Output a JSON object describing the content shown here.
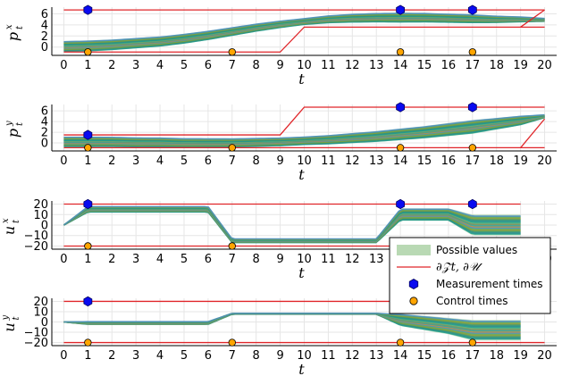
{
  "chart_data": [
    {
      "type": "line",
      "ylabel": {
        "base": "p",
        "sup": "x",
        "sub": "t"
      },
      "xlabel": "t",
      "xlim": [
        -0.5,
        20.5
      ],
      "ylim": [
        -1.5,
        7.2
      ],
      "xticks": [
        "0",
        "1",
        "2",
        "3",
        "4",
        "5",
        "6",
        "7",
        "8",
        "9",
        "10",
        "11",
        "12",
        "13",
        "14",
        "15",
        "16",
        "17",
        "18",
        "19",
        "20"
      ],
      "yticks": [
        0,
        2,
        4,
        6
      ],
      "bounds_upper": {
        "x": [
          0,
          1,
          20
        ],
        "y": [
          6.7,
          6.7,
          6.7
        ]
      },
      "bounds_lower": {
        "x": [
          0,
          9,
          10,
          20
        ],
        "y": [
          -0.9,
          -0.9,
          3.6,
          3.6
        ]
      },
      "bound_right_edge": {
        "x": [
          19,
          20
        ],
        "y": [
          3.6,
          6.7
        ]
      },
      "band_center": {
        "x": [
          0,
          1,
          2,
          3,
          4,
          5,
          6,
          7,
          8,
          9,
          10,
          11,
          12,
          13,
          14,
          15,
          16,
          17,
          18,
          19,
          20
        ],
        "y": [
          0.1,
          0.2,
          0.4,
          0.7,
          1.0,
          1.5,
          2.1,
          2.8,
          3.5,
          4.1,
          4.6,
          5.0,
          5.2,
          5.3,
          5.3,
          5.3,
          5.2,
          5.1,
          5.0,
          5.0,
          4.9
        ]
      },
      "band_halfwidth": {
        "x": [
          0,
          1,
          5,
          10,
          12,
          14,
          17,
          19,
          20
        ],
        "y": [
          1.0,
          1.0,
          0.9,
          0.6,
          0.8,
          0.9,
          0.8,
          0.5,
          0.3
        ]
      },
      "measurement_times": [
        1,
        14,
        17
      ],
      "control_times": [
        1,
        7,
        14,
        17
      ]
    },
    {
      "type": "line",
      "ylabel": {
        "base": "p",
        "sup": "y",
        "sub": "t"
      },
      "xlabel": "t",
      "xlim": [
        -0.5,
        20.5
      ],
      "ylim": [
        -1.5,
        7.2
      ],
      "xticks": [
        "0",
        "1",
        "2",
        "3",
        "4",
        "5",
        "6",
        "7",
        "8",
        "9",
        "10",
        "11",
        "12",
        "13",
        "14",
        "15",
        "16",
        "17",
        "18",
        "19",
        "20"
      ],
      "yticks": [
        0,
        2,
        4,
        6
      ],
      "bounds_upper": {
        "x": [
          0,
          9,
          10,
          19,
          20
        ],
        "y": [
          1.5,
          1.5,
          6.7,
          6.7,
          6.7
        ]
      },
      "bounds_lower": {
        "x": [
          0,
          19,
          20
        ],
        "y": [
          -0.9,
          -0.9,
          -0.9
        ]
      },
      "bound_right_edge": {
        "x": [
          19,
          20
        ],
        "y": [
          -0.9,
          4.5
        ]
      },
      "band_center": {
        "x": [
          0,
          1,
          2,
          3,
          4,
          5,
          6,
          7,
          8,
          9,
          10,
          11,
          12,
          13,
          14,
          15,
          16,
          17,
          18,
          19,
          20
        ],
        "y": [
          0.2,
          0.2,
          0.2,
          0.1,
          0.1,
          0.0,
          0.0,
          0.0,
          0.1,
          0.2,
          0.4,
          0.6,
          0.9,
          1.2,
          1.6,
          2.0,
          2.5,
          3.0,
          3.6,
          4.2,
          5.0
        ]
      },
      "band_halfwidth": {
        "x": [
          0,
          1,
          10,
          14,
          17,
          19,
          20
        ],
        "y": [
          1.0,
          1.0,
          0.8,
          1.1,
          1.3,
          0.9,
          0.3
        ]
      },
      "measurement_times": [
        1,
        14,
        17
      ],
      "control_times": [
        1,
        7,
        14,
        17
      ]
    },
    {
      "type": "line",
      "ylabel": {
        "base": "u",
        "sup": "x",
        "sub": "t"
      },
      "xlabel": "t",
      "xlim": [
        -0.5,
        20.5
      ],
      "ylim": [
        -23,
        23
      ],
      "xticks": [
        "0",
        "1",
        "2",
        "3",
        "4",
        "5",
        "6",
        "7",
        "8",
        "9",
        "10",
        "11",
        "12",
        "13",
        "14",
        "15",
        "16",
        "17",
        "18",
        "19",
        "20"
      ],
      "yticks": [
        -20,
        -10,
        0,
        10,
        20
      ],
      "bounds_upper": {
        "x": [
          0,
          19
        ],
        "y": [
          20,
          20
        ]
      },
      "bounds_lower": {
        "x": [
          0,
          20
        ],
        "y": [
          -20,
          -20
        ]
      },
      "band_center": {
        "x": [
          0,
          1,
          6,
          7,
          13,
          14,
          16,
          17,
          19
        ],
        "y": [
          0,
          15,
          15,
          -15,
          -15,
          10,
          10,
          0,
          0
        ]
      },
      "band_halfwidth": {
        "x": [
          0,
          1,
          6,
          7,
          13,
          14,
          16,
          17,
          19
        ],
        "y": [
          0,
          3,
          3,
          2,
          2,
          6,
          6,
          10,
          10
        ]
      },
      "measurement_times": [
        1,
        14,
        17
      ],
      "control_times": [
        1,
        7,
        14,
        17
      ]
    },
    {
      "type": "line",
      "ylabel": {
        "base": "u",
        "sup": "y",
        "sub": "t"
      },
      "xlabel": "t",
      "xlim": [
        -0.5,
        20.5
      ],
      "ylim": [
        -23,
        23
      ],
      "xticks": [
        "0",
        "1",
        "2",
        "3",
        "4",
        "5",
        "6",
        "7",
        "8",
        "9",
        "10",
        "11",
        "12",
        "13",
        "14",
        "15",
        "16",
        "17",
        "18",
        "19",
        "20"
      ],
      "yticks": [
        -20,
        -10,
        0,
        10,
        20
      ],
      "bounds_upper": {
        "x": [
          0,
          19
        ],
        "y": [
          20,
          20
        ]
      },
      "bounds_lower": {
        "x": [
          0,
          20
        ],
        "y": [
          -20,
          -20
        ]
      },
      "band_center": {
        "x": [
          0,
          1,
          6,
          7,
          13,
          14,
          16,
          17,
          19
        ],
        "y": [
          0,
          -1,
          -1,
          8,
          8,
          2,
          -4,
          -8,
          -8
        ]
      },
      "band_halfwidth": {
        "x": [
          0,
          1,
          6,
          7,
          13,
          14,
          16,
          17,
          19
        ],
        "y": [
          0,
          1.5,
          1.5,
          0.5,
          0.5,
          6,
          8,
          10,
          10
        ]
      },
      "measurement_times": [
        1
      ],
      "control_times": [
        1,
        7,
        14,
        17
      ]
    }
  ],
  "legend": {
    "placement": "right",
    "items": [
      {
        "label": "Possible values",
        "kind": "band"
      },
      {
        "label": "∂𝒵t, ∂𝒰",
        "kind": "line"
      },
      {
        "label": "Measurement times",
        "kind": "hexagon"
      },
      {
        "label": "Control times",
        "kind": "circle"
      }
    ]
  },
  "colors": {
    "bound": "#e0262a",
    "band": "#b9d9b4",
    "measurement": "#0a0af0",
    "control": "#ffa500",
    "series": [
      "#1f9e89",
      "#2a8c8c",
      "#3b9a6b",
      "#8a9a3a",
      "#6aa84f",
      "#4a8fbf",
      "#c08a3e",
      "#2fa3a3",
      "#7a8f5a",
      "#5fae7a"
    ]
  }
}
